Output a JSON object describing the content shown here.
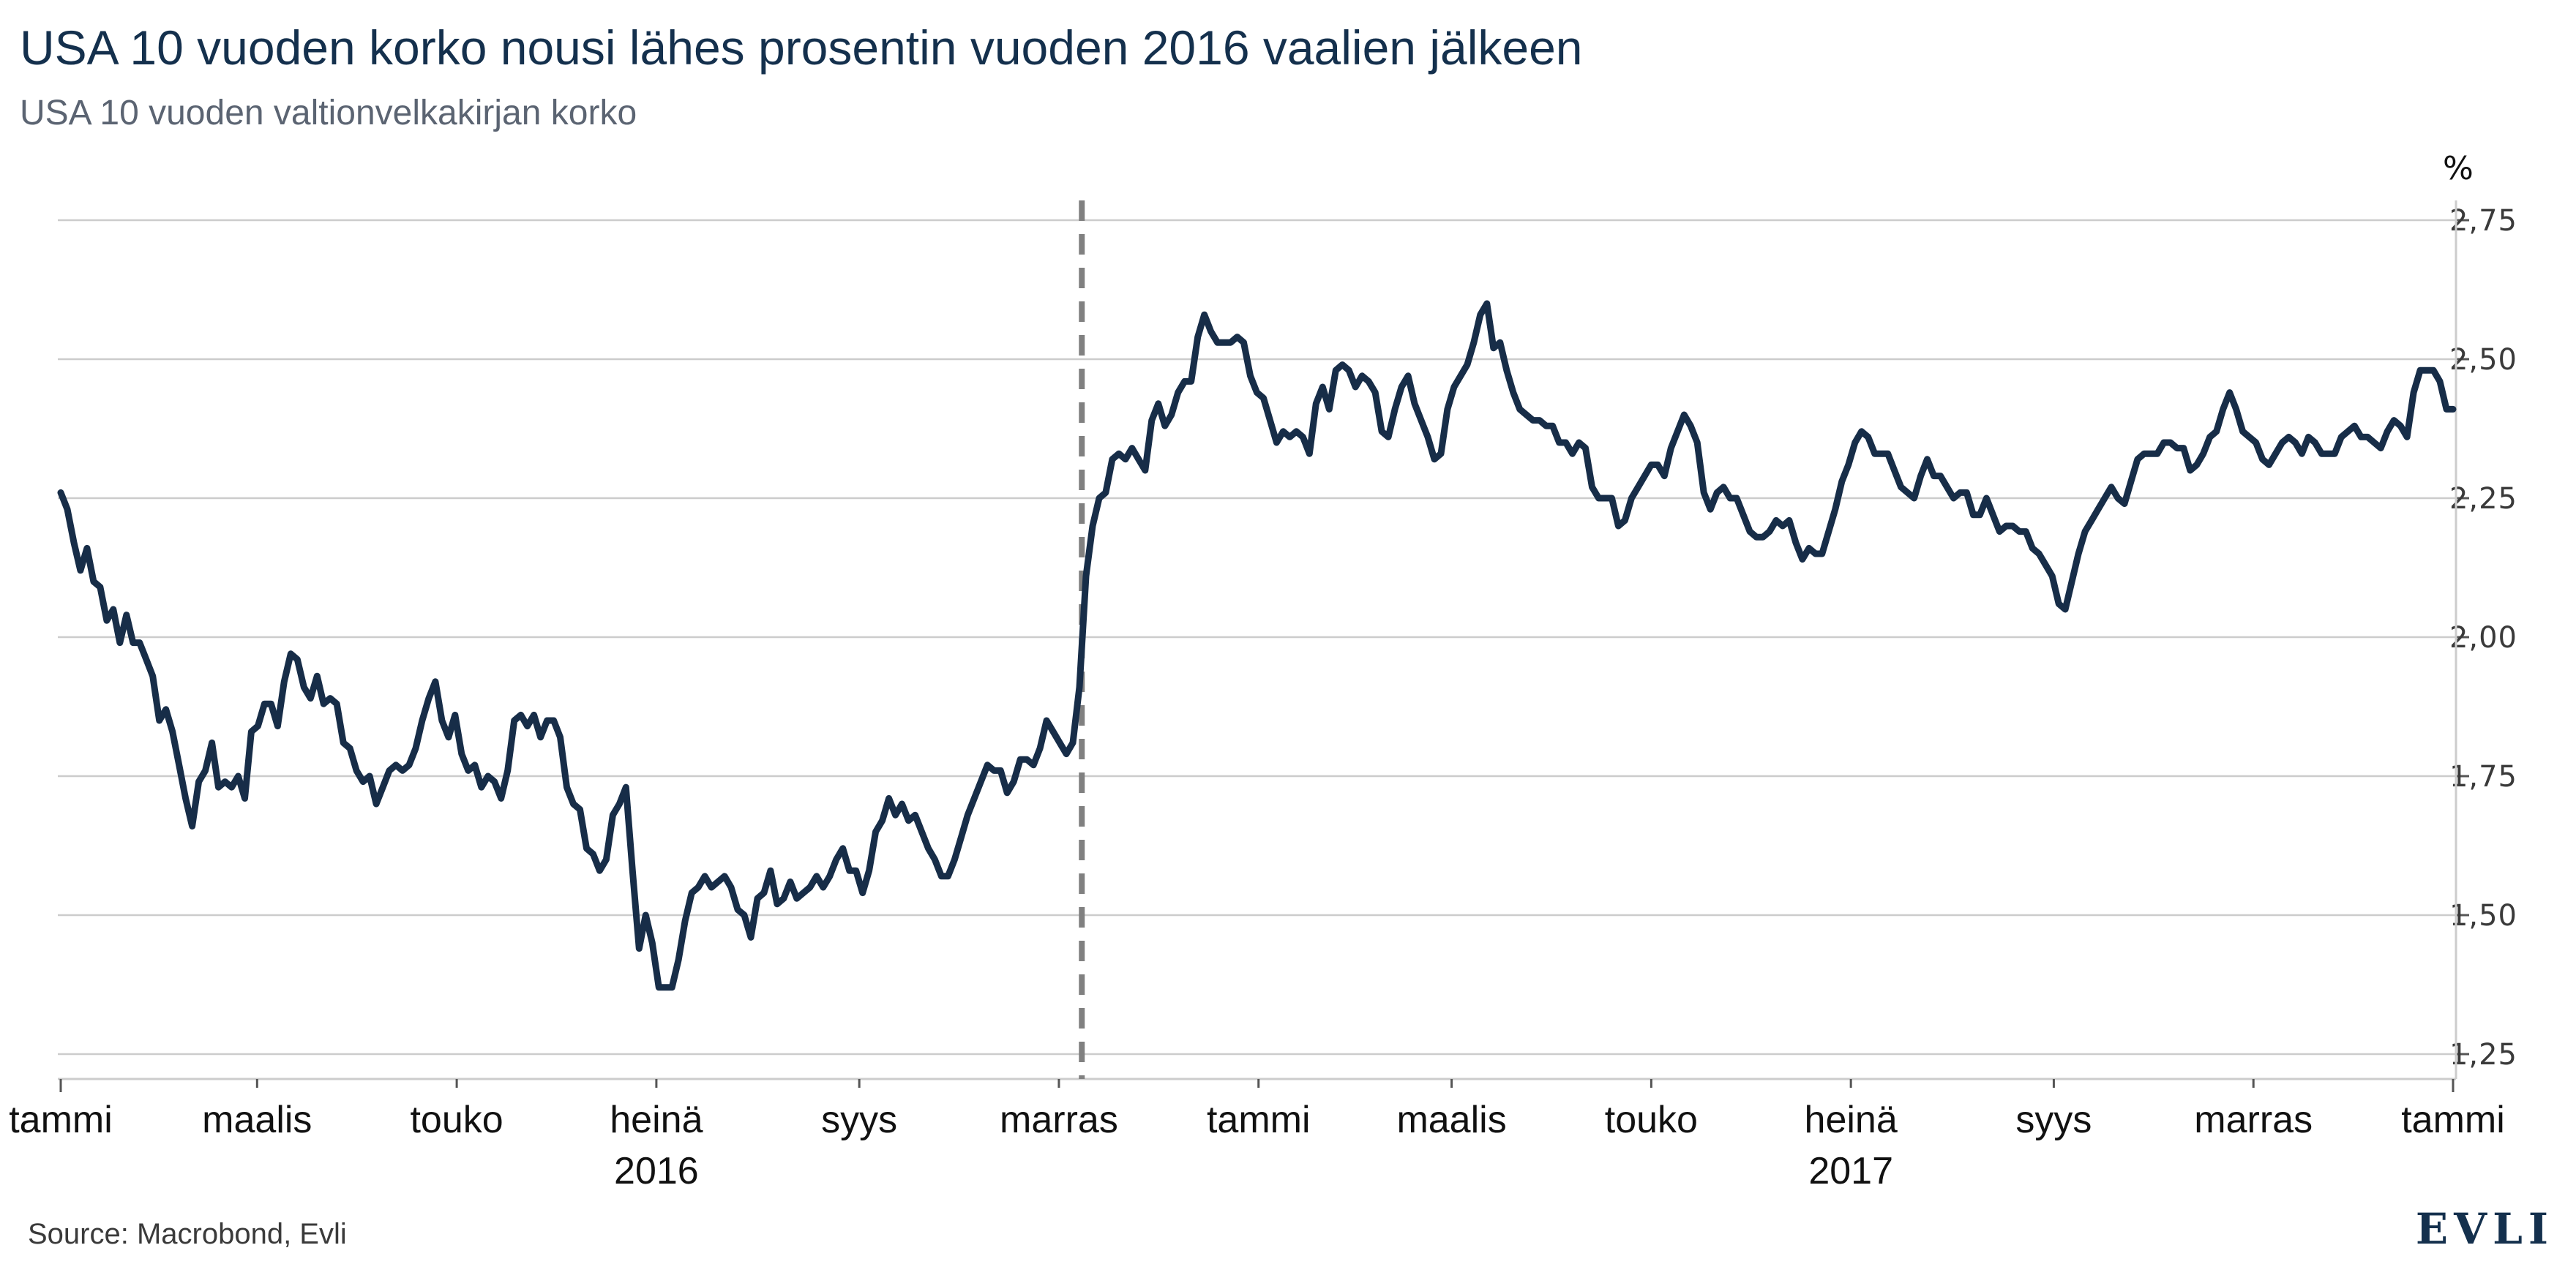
{
  "title": "USA 10 vuoden korko nousi lähes prosentin vuoden 2016 vaalien jälkeen",
  "subtitle": "USA 10 vuoden valtionvelkakirjan korko",
  "source": "Source: Macrobond, Evli",
  "logo": "EVLI",
  "colors": {
    "series": "#172d48",
    "title": "#14304d",
    "subtitle": "#5b6472",
    "grid": "#cccccc",
    "marker": "#808080"
  },
  "chart_data": {
    "type": "line",
    "title": "USA 10 vuoden korko nousi lähes prosentin vuoden 2016 vaalien jälkeen",
    "subtitle": "USA 10 vuoden valtionvelkakirjan korko",
    "xlabel": "",
    "ylabel": "%",
    "ylim": [
      1.25,
      2.75
    ],
    "yticks": [
      "2,75",
      "2,50",
      "2,25",
      "2,00",
      "1,75",
      "1,50",
      "1,25"
    ],
    "ytick_values": [
      2.75,
      2.5,
      2.25,
      2.0,
      1.75,
      1.5,
      1.25
    ],
    "y_axis_side": "right",
    "grid": true,
    "x_range": [
      "2016-01-01",
      "2018-01-01"
    ],
    "xticks": [
      {
        "label": "tammi",
        "date": "2016-01-01"
      },
      {
        "label": "maalis",
        "date": "2016-03-01"
      },
      {
        "label": "touko",
        "date": "2016-05-01"
      },
      {
        "label": "heinä",
        "date": "2016-07-01"
      },
      {
        "label": "syys",
        "date": "2016-09-01"
      },
      {
        "label": "marras",
        "date": "2016-11-01"
      },
      {
        "label": "tammi",
        "date": "2017-01-01"
      },
      {
        "label": "maalis",
        "date": "2017-03-01"
      },
      {
        "label": "touko",
        "date": "2017-05-01"
      },
      {
        "label": "heinä",
        "date": "2017-07-01"
      },
      {
        "label": "syys",
        "date": "2017-09-01"
      },
      {
        "label": "marras",
        "date": "2017-11-01"
      },
      {
        "label": "tammi",
        "date": "2018-01-01"
      }
    ],
    "year_labels": [
      {
        "label": "2016",
        "date": "2016-07-01"
      },
      {
        "label": "2017",
        "date": "2017-07-01"
      }
    ],
    "vertical_marker": {
      "date": "2016-11-08",
      "style": "dashed"
    },
    "series": [
      {
        "name": "USA 10 vuoden valtionvelkakirjan korko",
        "x_start": "2016-01-01",
        "x_step_days": 2,
        "values": [
          2.26,
          2.23,
          2.17,
          2.12,
          2.16,
          2.1,
          2.09,
          2.03,
          2.05,
          1.99,
          2.04,
          1.99,
          1.99,
          1.96,
          1.93,
          1.85,
          1.87,
          1.83,
          1.77,
          1.71,
          1.66,
          1.74,
          1.76,
          1.81,
          1.73,
          1.74,
          1.73,
          1.75,
          1.71,
          1.83,
          1.84,
          1.88,
          1.88,
          1.84,
          1.92,
          1.97,
          1.96,
          1.91,
          1.89,
          1.93,
          1.88,
          1.89,
          1.88,
          1.81,
          1.8,
          1.76,
          1.74,
          1.75,
          1.7,
          1.73,
          1.76,
          1.77,
          1.76,
          1.77,
          1.8,
          1.85,
          1.89,
          1.92,
          1.85,
          1.82,
          1.86,
          1.79,
          1.76,
          1.77,
          1.73,
          1.75,
          1.74,
          1.71,
          1.76,
          1.85,
          1.86,
          1.84,
          1.86,
          1.82,
          1.85,
          1.85,
          1.82,
          1.73,
          1.7,
          1.69,
          1.62,
          1.61,
          1.58,
          1.6,
          1.68,
          1.7,
          1.73,
          1.58,
          1.44,
          1.5,
          1.45,
          1.37,
          1.37,
          1.37,
          1.42,
          1.49,
          1.54,
          1.55,
          1.57,
          1.55,
          1.56,
          1.57,
          1.55,
          1.51,
          1.5,
          1.46,
          1.53,
          1.54,
          1.58,
          1.52,
          1.53,
          1.56,
          1.53,
          1.54,
          1.55,
          1.57,
          1.55,
          1.57,
          1.6,
          1.62,
          1.58,
          1.58,
          1.54,
          1.58,
          1.65,
          1.67,
          1.71,
          1.68,
          1.7,
          1.67,
          1.68,
          1.65,
          1.62,
          1.6,
          1.57,
          1.57,
          1.6,
          1.64,
          1.68,
          1.71,
          1.74,
          1.77,
          1.76,
          1.76,
          1.72,
          1.74,
          1.78,
          1.78,
          1.77,
          1.8,
          1.85,
          1.83,
          1.81,
          1.79,
          1.81,
          1.91,
          2.11,
          2.2,
          2.25,
          2.26,
          2.32,
          2.33,
          2.32,
          2.34,
          2.32,
          2.3,
          2.39,
          2.42,
          2.38,
          2.4,
          2.44,
          2.46,
          2.46,
          2.54,
          2.58,
          2.55,
          2.53,
          2.53,
          2.53,
          2.54,
          2.53,
          2.47,
          2.44,
          2.43,
          2.39,
          2.35,
          2.37,
          2.36,
          2.37,
          2.36,
          2.33,
          2.42,
          2.45,
          2.41,
          2.48,
          2.49,
          2.48,
          2.45,
          2.47,
          2.46,
          2.44,
          2.37,
          2.36,
          2.41,
          2.45,
          2.47,
          2.42,
          2.39,
          2.36,
          2.32,
          2.33,
          2.41,
          2.45,
          2.47,
          2.49,
          2.53,
          2.58,
          2.6,
          2.52,
          2.53,
          2.48,
          2.44,
          2.41,
          2.4,
          2.39,
          2.39,
          2.38,
          2.38,
          2.35,
          2.35,
          2.33,
          2.35,
          2.34,
          2.27,
          2.25,
          2.25,
          2.25,
          2.2,
          2.21,
          2.25,
          2.27,
          2.29,
          2.31,
          2.31,
          2.29,
          2.34,
          2.37,
          2.4,
          2.38,
          2.35,
          2.26,
          2.23,
          2.26,
          2.27,
          2.25,
          2.25,
          2.22,
          2.19,
          2.18,
          2.18,
          2.19,
          2.21,
          2.2,
          2.21,
          2.17,
          2.14,
          2.16,
          2.15,
          2.15,
          2.19,
          2.23,
          2.28,
          2.31,
          2.35,
          2.37,
          2.36,
          2.33,
          2.33,
          2.33,
          2.3,
          2.27,
          2.26,
          2.25,
          2.29,
          2.32,
          2.29,
          2.29,
          2.27,
          2.25,
          2.26,
          2.26,
          2.22,
          2.22,
          2.25,
          2.22,
          2.19,
          2.2,
          2.2,
          2.19,
          2.19,
          2.16,
          2.15,
          2.13,
          2.11,
          2.06,
          2.05,
          2.1,
          2.15,
          2.19,
          2.21,
          2.23,
          2.25,
          2.27,
          2.25,
          2.24,
          2.28,
          2.32,
          2.33,
          2.33,
          2.33,
          2.35,
          2.35,
          2.34,
          2.34,
          2.3,
          2.31,
          2.33,
          2.36,
          2.37,
          2.41,
          2.44,
          2.41,
          2.37,
          2.36,
          2.35,
          2.32,
          2.31,
          2.33,
          2.35,
          2.36,
          2.35,
          2.33,
          2.36,
          2.35,
          2.33,
          2.33,
          2.33,
          2.36,
          2.37,
          2.38,
          2.36,
          2.36,
          2.35,
          2.34,
          2.37,
          2.39,
          2.38,
          2.36,
          2.44,
          2.48,
          2.48,
          2.48,
          2.46,
          2.41,
          2.41
        ]
      }
    ]
  }
}
